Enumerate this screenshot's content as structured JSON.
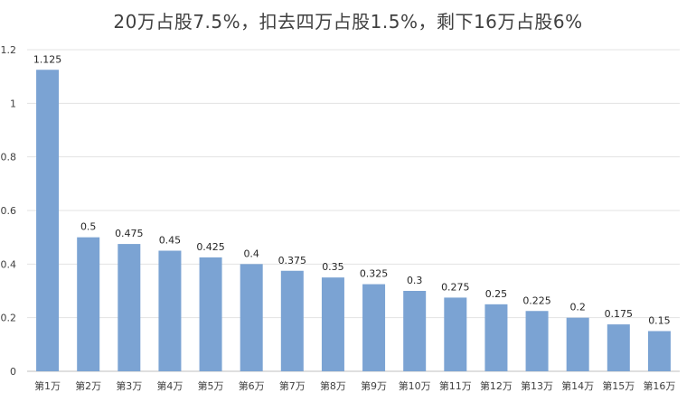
{
  "chart_data": {
    "type": "bar",
    "title": "20万占股7.5%，扣去四万占股1.5%，剩下16万占股6%",
    "xlabel": "",
    "ylabel": "",
    "ylim": [
      0,
      1.2
    ],
    "yticks": [
      "0",
      "0.2",
      "0.4",
      "0.6",
      "0.8",
      "1",
      "1.2"
    ],
    "grid": true,
    "bar_color": "#7BA3D3",
    "categories": [
      "第1万",
      "第2万",
      "第3万",
      "第4万",
      "第5万",
      "第6万",
      "第7万",
      "第8万",
      "第9万",
      "第10万",
      "第11万",
      "第12万",
      "第13万",
      "第14万",
      "第15万",
      "第16万"
    ],
    "values": [
      1.125,
      0.5,
      0.475,
      0.45,
      0.425,
      0.4,
      0.375,
      0.35,
      0.325,
      0.3,
      0.275,
      0.25,
      0.225,
      0.2,
      0.175,
      0.15
    ],
    "data_labels": [
      "1.125",
      "0.5",
      "0.475",
      "0.45",
      "0.425",
      "0.4",
      "0.375",
      "0.35",
      "0.325",
      "0.3",
      "0.275",
      "0.25",
      "0.225",
      "0.2",
      "0.175",
      "0.15"
    ]
  }
}
